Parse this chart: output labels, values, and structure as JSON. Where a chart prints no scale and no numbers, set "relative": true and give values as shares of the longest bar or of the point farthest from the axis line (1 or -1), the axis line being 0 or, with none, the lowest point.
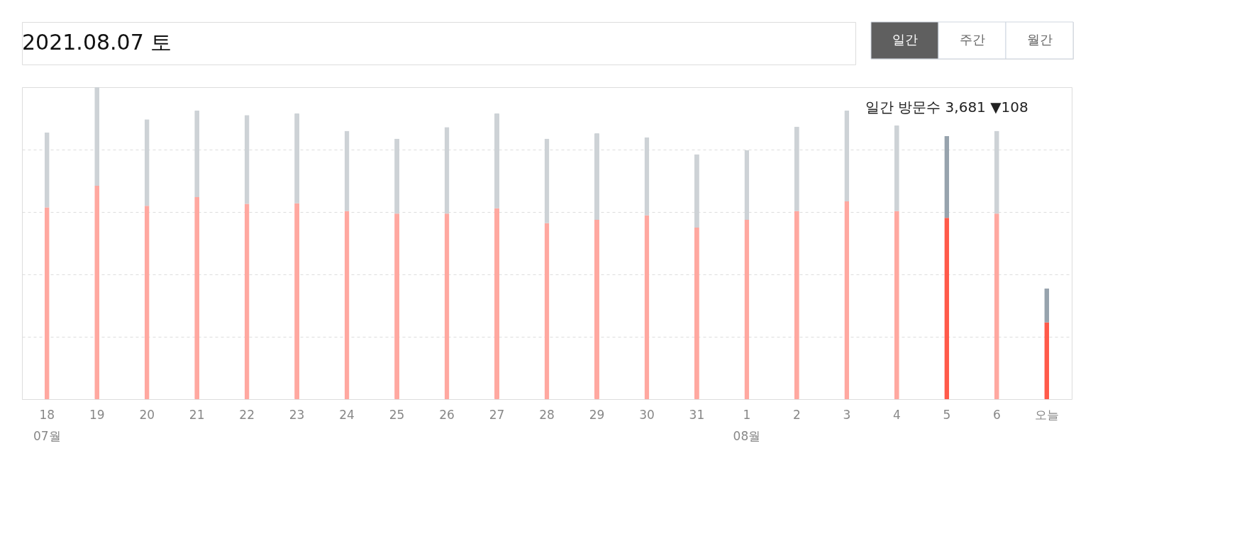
{
  "chart_data": {
    "type": "bar",
    "title": "2021.08.07 토",
    "stacked": true,
    "relative": true,
    "grid": "y",
    "categories": [
      "18\n07월",
      "19",
      "20",
      "21",
      "22",
      "23",
      "24",
      "25",
      "26",
      "27",
      "28",
      "29",
      "30",
      "31",
      "1\n08월",
      "2",
      "3",
      "4",
      "5",
      "6",
      "오늘"
    ],
    "series": [
      {
        "colors": [
          "#ffa8a0",
          "#ffa8a0",
          "#ffa8a0",
          "#ffa8a0",
          "#ffa8a0",
          "#ffa8a0",
          "#ffa8a0",
          "#ffa8a0",
          "#ffa8a0",
          "#ffa8a0",
          "#ffa8a0",
          "#ffa8a0",
          "#ffa8a0",
          "#ffa8a0",
          "#ffa8a0",
          "#ffa8a0",
          "#ffa8a0",
          "#ffa8a0",
          "#ff5a4a",
          "#ffa8a0",
          "#ff5a4a"
        ],
        "values": [
          0.615,
          0.684,
          0.62,
          0.648,
          0.626,
          0.628,
          0.603,
          0.595,
          0.595,
          0.612,
          0.564,
          0.575,
          0.589,
          0.55,
          0.575,
          0.603,
          0.634,
          0.603,
          0.581,
          0.595,
          0.246
        ]
      },
      {
        "colors": [
          "#cdd2d6",
          "#cdd2d6",
          "#cdd2d6",
          "#cdd2d6",
          "#cdd2d6",
          "#cdd2d6",
          "#cdd2d6",
          "#cdd2d6",
          "#cdd2d6",
          "#cdd2d6",
          "#cdd2d6",
          "#cdd2d6",
          "#cdd2d6",
          "#cdd2d6",
          "#cdd2d6",
          "#cdd2d6",
          "#cdd2d6",
          "#cdd2d6",
          "#97a3ad",
          "#cdd2d6",
          "#97a3ad"
        ],
        "values": [
          0.24,
          0.316,
          0.277,
          0.277,
          0.285,
          0.288,
          0.257,
          0.24,
          0.277,
          0.304,
          0.271,
          0.277,
          0.251,
          0.235,
          0.223,
          0.271,
          0.291,
          0.274,
          0.263,
          0.265,
          0.109
        ]
      }
    ],
    "annotations": [
      "일간",
      "주간",
      "월간",
      {
        "text": "일간 방문수 3,681 ▼108",
        "x": "5",
        "y": 0.844
      }
    ]
  }
}
